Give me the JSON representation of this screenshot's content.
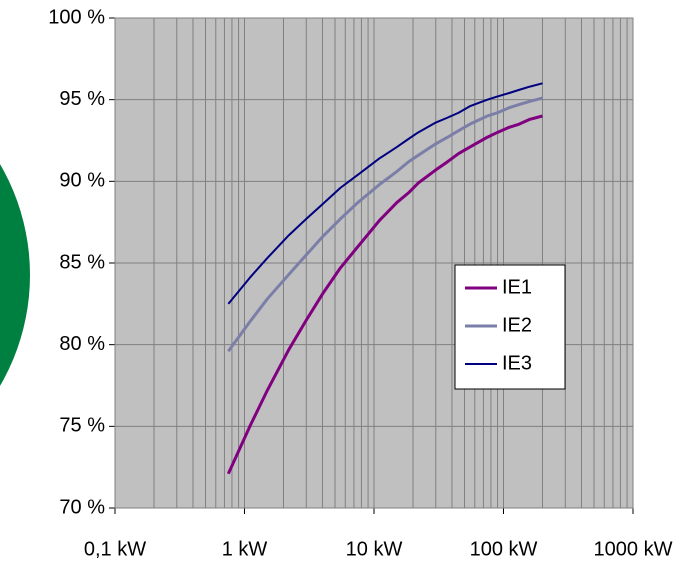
{
  "chart_data": {
    "type": "line",
    "x_scale": "log",
    "grid": true,
    "x_minor_grid": true,
    "legend_position": "right",
    "x": [
      0.75,
      1.1,
      1.5,
      2.2,
      3,
      4,
      5.5,
      7.5,
      11,
      15,
      18.5,
      22,
      30,
      37,
      45,
      55,
      75,
      90,
      110,
      132,
      160,
      200
    ],
    "series": [
      {
        "name": "IE1",
        "color": "#800080",
        "values": [
          72.1,
          75.0,
          77.2,
          79.7,
          81.5,
          83.1,
          84.7,
          86.0,
          87.6,
          88.7,
          89.3,
          89.9,
          90.7,
          91.2,
          91.7,
          92.1,
          92.7,
          93.0,
          93.3,
          93.5,
          93.8,
          94.0
        ]
      },
      {
        "name": "IE2",
        "color": "#7b7fa8",
        "values": [
          79.6,
          81.4,
          82.8,
          84.3,
          85.5,
          86.6,
          87.7,
          88.7,
          89.8,
          90.6,
          91.2,
          91.6,
          92.3,
          92.7,
          93.1,
          93.5,
          94.0,
          94.2,
          94.5,
          94.7,
          94.9,
          95.1
        ]
      },
      {
        "name": "IE3",
        "color": "#000080",
        "values": [
          82.5,
          84.1,
          85.3,
          86.7,
          87.7,
          88.6,
          89.6,
          90.4,
          91.4,
          92.1,
          92.6,
          93.0,
          93.6,
          93.9,
          94.2,
          94.6,
          95.0,
          95.2,
          95.4,
          95.6,
          95.8,
          96.0
        ]
      }
    ],
    "xlim": [
      0.1,
      1000
    ],
    "xticks": [
      {
        "value": 0.1,
        "label": "0,1 kW"
      },
      {
        "value": 1,
        "label": "1 kW"
      },
      {
        "value": 10,
        "label": "10 kW"
      },
      {
        "value": 100,
        "label": "100 kW"
      },
      {
        "value": 1000,
        "label": "1000 kW"
      }
    ],
    "ylim": [
      70,
      100
    ],
    "yticks": [
      {
        "value": 70,
        "label": "70 %"
      },
      {
        "value": 75,
        "label": "75 %"
      },
      {
        "value": 80,
        "label": "80 %"
      },
      {
        "value": 85,
        "label": "85 %"
      },
      {
        "value": 90,
        "label": "90 %"
      },
      {
        "value": 95,
        "label": "95 %"
      },
      {
        "value": 100,
        "label": "100 %"
      }
    ]
  }
}
